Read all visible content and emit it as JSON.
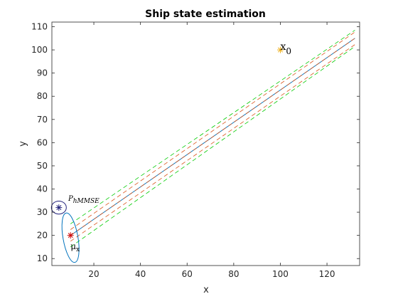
{
  "chart_data": {
    "type": "line",
    "title": "Ship state estimation",
    "xlabel": "x",
    "ylabel": "y",
    "xlim": [
      2,
      134
    ],
    "ylim": [
      7,
      112
    ],
    "xticks": [
      20,
      40,
      60,
      80,
      100,
      120
    ],
    "yticks": [
      10,
      20,
      30,
      40,
      50,
      60,
      70,
      80,
      90,
      100,
      110
    ],
    "grid": false,
    "colors": {
      "true_path": "#0072BD",
      "estimate": "#D95319",
      "bounds": "#00CC00",
      "ellipse_blue": "#1F1F7A",
      "ellipse_teal": "#0072BD",
      "marker_orange": "#EDB120",
      "marker_red": "#CC0000",
      "marker_dark": "#1F1F7A"
    },
    "series": [
      {
        "style": "solid",
        "color": "true_path",
        "x": [
          10,
          132
        ],
        "y": [
          20,
          105
        ]
      },
      {
        "style": "dashed",
        "color": "estimate",
        "x": [
          10,
          132
        ],
        "y": [
          20,
          105
        ]
      },
      {
        "style": "dashed",
        "color": "estimate",
        "x": [
          10,
          132
        ],
        "y": [
          22.5,
          107.7
        ]
      },
      {
        "style": "dashed",
        "color": "estimate",
        "x": [
          10,
          132
        ],
        "y": [
          17.5,
          102.3
        ]
      },
      {
        "style": "dashed",
        "color": "bounds",
        "x": [
          10,
          132
        ],
        "y": [
          25,
          108.5
        ]
      },
      {
        "style": "dashed",
        "color": "bounds",
        "x": [
          10,
          132
        ],
        "y": [
          15,
          101.5
        ]
      }
    ],
    "ellipses": [
      {
        "cx": 5,
        "cy": 32,
        "rx": 3.2,
        "ry": 2.8,
        "color": "ellipse_blue"
      },
      {
        "cx": 10,
        "cy": 19,
        "rx": 3.2,
        "ry": 10.8,
        "rotate": -10,
        "color": "ellipse_teal"
      }
    ],
    "markers": [
      {
        "x": 100,
        "y": 100,
        "symbol": "*",
        "color": "marker_orange"
      },
      {
        "x": 5,
        "y": 32,
        "symbol": "*",
        "color": "marker_dark"
      },
      {
        "x": 10,
        "y": 20,
        "symbol": "*",
        "color": "marker_red"
      }
    ],
    "annotations": [
      {
        "x": 100,
        "y": 100,
        "main": "x",
        "sub": "0"
      },
      {
        "x": 9,
        "y": 35,
        "main": "P",
        "sub": "hMMSE"
      },
      {
        "x": 10,
        "y": 14,
        "main": "μ",
        "sub": "x"
      }
    ]
  }
}
